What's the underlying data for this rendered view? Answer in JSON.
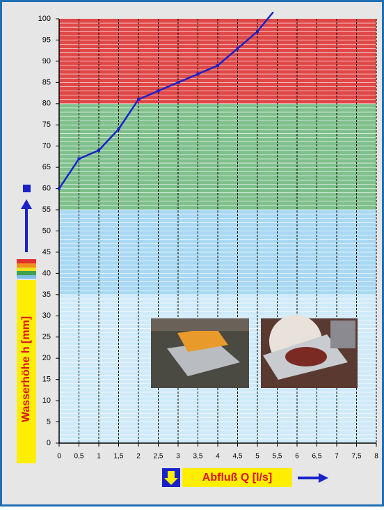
{
  "chart_data": {
    "type": "line",
    "x": [
      0,
      0.5,
      1,
      1.5,
      2,
      2.5,
      3,
      3.5,
      4,
      4.5,
      5,
      5.4
    ],
    "series": [
      {
        "color": "#1a22c8",
        "values": [
          60,
          67,
          69,
          74,
          81,
          83,
          85,
          87,
          89,
          93,
          97,
          101.6
        ]
      }
    ],
    "xlim": [
      0,
      8
    ],
    "ylim": [
      0,
      100
    ],
    "xticks": [
      0,
      {
        "value": 0.5,
        "label": "0,5"
      },
      1,
      {
        "value": 1.5,
        "label": "1,5"
      },
      2,
      {
        "value": 2.5,
        "label": "2,5"
      },
      3,
      {
        "value": 3.5,
        "label": "3,5"
      },
      4,
      {
        "value": 4.5,
        "label": "4,5"
      },
      5,
      {
        "value": 5.5,
        "label": "5,5"
      },
      6,
      {
        "value": 6.5,
        "label": "6,5"
      },
      7,
      {
        "value": 7.5,
        "label": "7,5"
      },
      8
    ],
    "yticks": [
      0,
      5,
      10,
      15,
      20,
      25,
      30,
      35,
      40,
      45,
      50,
      55,
      60,
      65,
      70,
      75,
      80,
      85,
      90,
      95,
      100
    ],
    "bands": [
      {
        "from": 0,
        "to": 35,
        "color": "#cfeaf8"
      },
      {
        "from": 35,
        "to": 55,
        "color": "#a9d8f3"
      },
      {
        "from": 55,
        "to": 80,
        "color": "#7fc08c"
      },
      {
        "from": 80,
        "to": 100,
        "color": "#e04848"
      }
    ],
    "xlabel": "Abfluß Q [l/s]",
    "ylabel": "Wasserhöhe h [mm]",
    "grid": true
  }
}
